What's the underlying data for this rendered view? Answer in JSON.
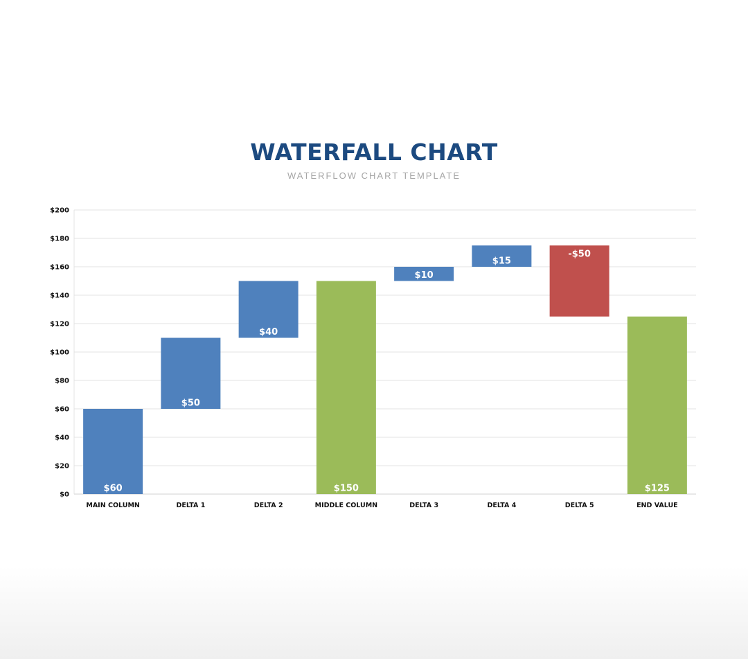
{
  "chart_data": {
    "type": "waterfall",
    "title": "WATERFALL CHART",
    "subtitle": "WATERFLOW CHART TEMPLATE",
    "xlabel": "",
    "ylabel": "",
    "ylim": [
      0,
      200
    ],
    "ytick_step": 20,
    "ytick_labels": [
      "$0",
      "$20",
      "$40",
      "$60",
      "$80",
      "$100",
      "$120",
      "$140",
      "$160",
      "$180",
      "$200"
    ],
    "grid": true,
    "categories": [
      "MAIN COLUMN",
      "DELTA 1",
      "DELTA 2",
      "MIDDLE COLUMN",
      "DELTA 3",
      "DELTA 4",
      "DELTA 5",
      "END VALUE"
    ],
    "bars": [
      {
        "start": 0,
        "end": 60,
        "label": "$60",
        "kind": "total"
      },
      {
        "start": 60,
        "end": 110,
        "label": "$50",
        "kind": "increase"
      },
      {
        "start": 110,
        "end": 150,
        "label": "$40",
        "kind": "increase"
      },
      {
        "start": 0,
        "end": 150,
        "label": "$150",
        "kind": "subtotal"
      },
      {
        "start": 150,
        "end": 160,
        "label": "$10",
        "kind": "increase"
      },
      {
        "start": 160,
        "end": 175,
        "label": "$15",
        "kind": "increase"
      },
      {
        "start": 175,
        "end": 125,
        "label": "-$50",
        "kind": "decrease"
      },
      {
        "start": 0,
        "end": 125,
        "label": "$125",
        "kind": "total"
      }
    ],
    "colors": {
      "increase": "#4f81bd",
      "total_first": "#4f81bd",
      "subtotal": "#9bbb59",
      "total": "#9bbb59",
      "decrease": "#c0504d"
    }
  }
}
